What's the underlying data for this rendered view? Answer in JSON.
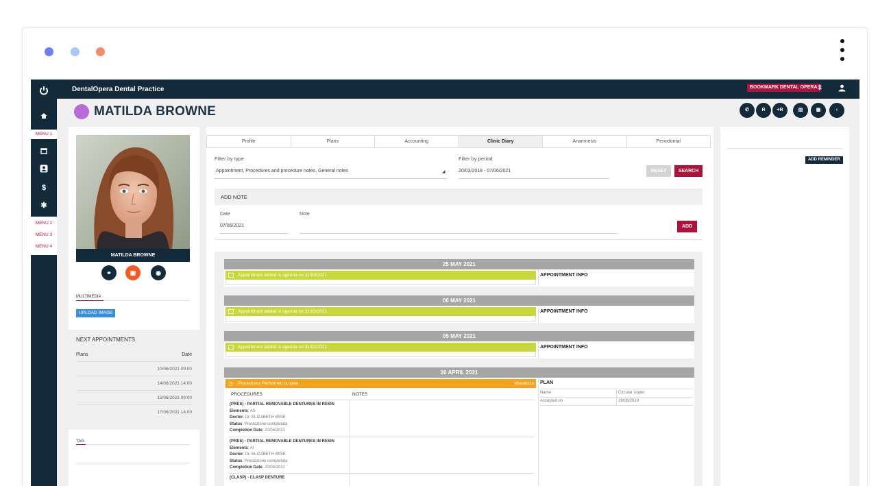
{
  "window": {
    "dots": [
      "#6f7ff0",
      "#a9c8f7",
      "#f48a6a"
    ]
  },
  "app": {
    "practice_name": "DentalOpera Dental Practice",
    "bookmark_label": "BOOKMARK DENTAL OPERA",
    "patient_name": "MATILDA BROWNE",
    "photo_caption": "MATILDA BROWNE",
    "accent_color": "#b0113a",
    "nav_color": "#132a3b"
  },
  "sidebar": {
    "menu1": "MENU 1",
    "menu2": "MENU 2",
    "menu3": "MENU 3",
    "menu4": "MENU 4"
  },
  "header_buttons": {
    "whatsapp": "✆",
    "rx": "R",
    "add": "+R",
    "print": "▤",
    "doc": "▦",
    "back": "‹"
  },
  "left": {
    "multimedia_label": "MULTIMEDIA",
    "upload_label": "UPLOAD IMAGE",
    "next_title": "NEXT APPOINTMENTS",
    "col_plans": "Plans",
    "col_date": "Date",
    "appointments": [
      "10/06/2021 09:00",
      "14/06/2021 14:00",
      "15/06/2021 09:00",
      "17/06/2021 14:00"
    ],
    "tag_label": "TAG"
  },
  "tabs": [
    "Profile",
    "Plans",
    "Accounting",
    "Clinic Diary",
    "Anamnesis",
    "Periodontal"
  ],
  "filters": {
    "type_label": "Filter by type",
    "type_value": "Appointment, Procedures and procedure notes, General notes",
    "period_label": "Filter by period",
    "period_value": "20/03/2018 - 07/06/2021",
    "reset_label": "RESET",
    "search_label": "SEARCH"
  },
  "add_note": {
    "title": "ADD NOTE",
    "date_label": "Date",
    "date_value": "07/06/2021",
    "note_label": "Note",
    "add_label": "ADD"
  },
  "diary": {
    "days": [
      {
        "date": "25 MAY 2021",
        "event": "Appointment added in agenda on 31/03/2021",
        "info": "APPOINTMENT INFO"
      },
      {
        "date": "06 MAY 2021",
        "event": "Appointment added in agenda on 31/03/2021",
        "info": "APPOINTMENT INFO"
      },
      {
        "date": "05 MAY 2021",
        "event": "Appointment added in agenda on 31/03/2021",
        "info": "APPOINTMENT INFO"
      }
    ],
    "april": {
      "date": "30 APRIL 2021",
      "event": "Procedures Performed on plan",
      "view_label": "Visualizza",
      "col_procedures": "PROCEDURES",
      "col_notes": "NOTES",
      "plan_title": "PLAN",
      "plan_name_label": "Name",
      "plan_name_value": "Circular Upper",
      "plan_accepted_label": "Accepted on",
      "plan_accepted_value": "29/06/2019",
      "procedures": [
        {
          "name": "(PRES) - PARTIAL REMOVABLE DENTURES IN RESIN",
          "elements": "AS",
          "doctor": "Dr. ELIZABETH WISE",
          "status": "Prestazione completata",
          "completion": "20/04/2021"
        },
        {
          "name": "(PRES) - PARTIAL REMOVABLE DENTURES IN RESIN",
          "elements": "AI",
          "doctor": "Dr. ELIZABETH WISE",
          "status": "Prestazione completata",
          "completion": "20/04/2021"
        },
        {
          "name": "(CLASP) - CLASP DENTURE"
        }
      ],
      "labels": {
        "elements": "Elements",
        "doctor": "Doctor",
        "status": "Status",
        "completion": "Completion Date"
      }
    }
  },
  "right": {
    "reminder_label": "ADD REMINDER"
  }
}
